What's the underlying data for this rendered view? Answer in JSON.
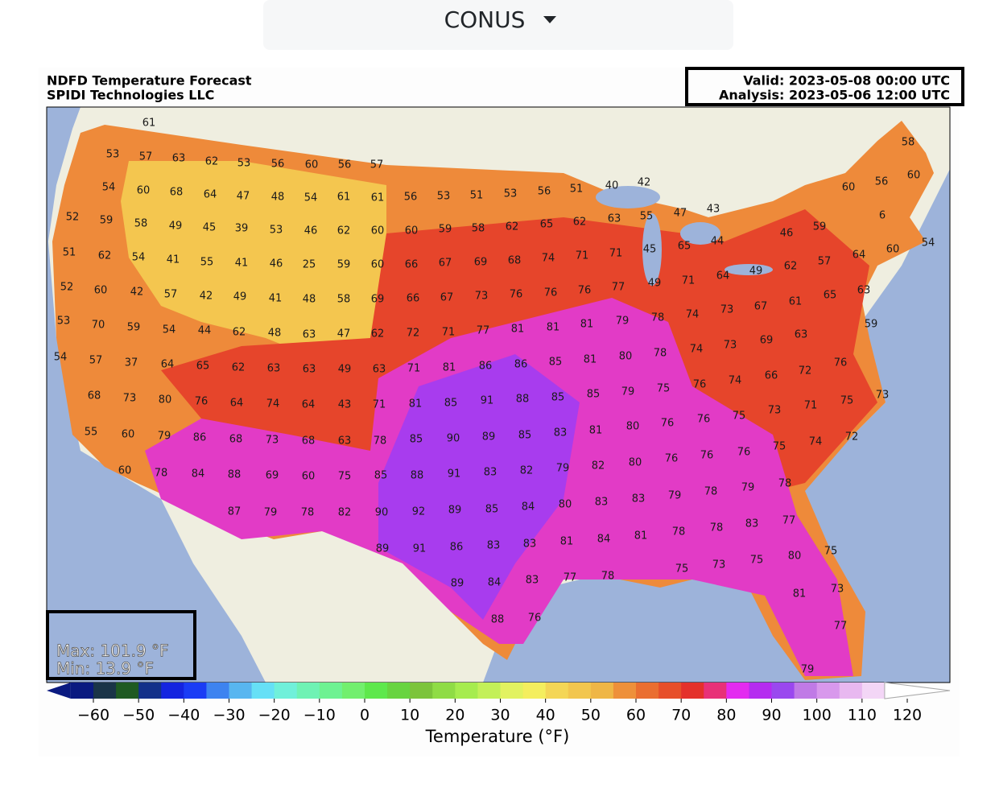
{
  "header": {
    "dropdown": "CONUS"
  },
  "figure": {
    "title_lines": [
      "NDFD Temperature Forecast",
      "SPIDI Technologies LLC"
    ],
    "valid": "Valid: 2023-05-08 00:00 UTC",
    "analysis": "Analysis: 2023-05-06 12:00 UTC",
    "max": "Max: 101.9 °F",
    "min": "Min: 13.9 °F"
  },
  "map": {
    "rows": [
      [
        61
      ],
      [
        58,
        53,
        57,
        63,
        62,
        53,
        56,
        60,
        56,
        57
      ],
      [
        60,
        56,
        42,
        40,
        51,
        60
      ],
      [
        54,
        60,
        68,
        64,
        47,
        48,
        54,
        61,
        61,
        56,
        53,
        51,
        53,
        56
      ],
      [
        52,
        59,
        58,
        49,
        45,
        39,
        53,
        46,
        62,
        60,
        60,
        59,
        58,
        62,
        65,
        62,
        63,
        55,
        47,
        43,
        6,
        59,
        46,
        54
      ],
      [
        51,
        62,
        54,
        41,
        55,
        41,
        46,
        25,
        59,
        60,
        66,
        67,
        69,
        68,
        74,
        71,
        71,
        45,
        65,
        44,
        64,
        60,
        62,
        57
      ],
      [
        52,
        60,
        42,
        57,
        42,
        49,
        41,
        48,
        58,
        69,
        66,
        67,
        73,
        76,
        76,
        76,
        77,
        49,
        71,
        64,
        49,
        63,
        61,
        65
      ],
      [
        53,
        70,
        59,
        54,
        44,
        62,
        48,
        63,
        47,
        62,
        72,
        71,
        77,
        81,
        81,
        81,
        79,
        78,
        74,
        73,
        67,
        59
      ],
      [
        54,
        57,
        37,
        64,
        65,
        62,
        63,
        63,
        49,
        63,
        71,
        81,
        86,
        86,
        85,
        81,
        80,
        78,
        74,
        73,
        69,
        63
      ],
      [
        68,
        73,
        80,
        76,
        64,
        74,
        64,
        43,
        71,
        81,
        85,
        91,
        88,
        85,
        85,
        79,
        75,
        76,
        74,
        66,
        72,
        76,
        73,
        75,
        71,
        73,
        75
      ],
      [
        55,
        60,
        79,
        86,
        68,
        73,
        68,
        63,
        78,
        85,
        90,
        89,
        85,
        83,
        81,
        80,
        76,
        76,
        75,
        74,
        72
      ],
      [
        60,
        78,
        84,
        88,
        69,
        60,
        75,
        85,
        88,
        91,
        83,
        82,
        79,
        82,
        80,
        76,
        76,
        76
      ],
      [
        87,
        79,
        78,
        82,
        90,
        92,
        89,
        85,
        84,
        80,
        83,
        83,
        79,
        78,
        79,
        78
      ],
      [
        89,
        91,
        86,
        83,
        83,
        81,
        84,
        81,
        78,
        78,
        83,
        77,
        80,
        75,
        75,
        73,
        75
      ],
      [
        89,
        84,
        83,
        77,
        78,
        81,
        73
      ],
      [
        88,
        76,
        77,
        79
      ]
    ]
  },
  "colorbar": {
    "label": "Temperature (°F)",
    "bounds": [
      -65,
      115
    ],
    "colors": [
      "#0a1a80",
      "#1a3448",
      "#1f5a22",
      "#13308a",
      "#1424e0",
      "#1a3cf5",
      "#3d83f0",
      "#58b6f0",
      "#66e0f6",
      "#70f0da",
      "#6ff2b4",
      "#6ef292",
      "#72ef6e",
      "#5ee84c",
      "#68d440",
      "#7cc43b",
      "#8fdc45",
      "#a6ec4e",
      "#c3f058",
      "#e2f260",
      "#f4ee5e",
      "#f4d656",
      "#f2c64e",
      "#efb646",
      "#ee903a",
      "#ea6e30",
      "#e74f2a",
      "#e4312b",
      "#e83178",
      "#e32bf0",
      "#b52cf0",
      "#9a48ef",
      "#c07ae6",
      "#d898ec",
      "#e8b8f0",
      "#f3d6f6"
    ],
    "under_color": "#0a1a80",
    "over_color": "#ffffff",
    "ticks": [
      {
        "value": -60,
        "label": "−60"
      },
      {
        "value": -50,
        "label": "−50"
      },
      {
        "value": -40,
        "label": "−40"
      },
      {
        "value": -30,
        "label": "−30"
      },
      {
        "value": -20,
        "label": "−20"
      },
      {
        "value": -10,
        "label": "−10"
      },
      0,
      10,
      20,
      30,
      40,
      50,
      60,
      70,
      80,
      90,
      100,
      110,
      120
    ]
  }
}
